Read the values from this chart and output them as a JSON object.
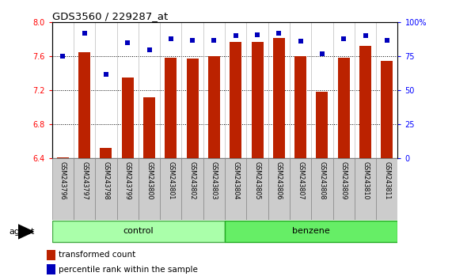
{
  "title": "GDS3560 / 229287_at",
  "samples": [
    "GSM243796",
    "GSM243797",
    "GSM243798",
    "GSM243799",
    "GSM243800",
    "GSM243801",
    "GSM243802",
    "GSM243803",
    "GSM243804",
    "GSM243805",
    "GSM243806",
    "GSM243807",
    "GSM243808",
    "GSM243809",
    "GSM243810",
    "GSM243811"
  ],
  "bar_values": [
    6.41,
    7.65,
    6.52,
    7.35,
    7.12,
    7.58,
    7.57,
    7.6,
    7.77,
    7.77,
    7.82,
    7.6,
    7.18,
    7.58,
    7.72,
    7.55
  ],
  "percentile_values": [
    75,
    92,
    62,
    85,
    80,
    88,
    87,
    87,
    90,
    91,
    92,
    86,
    77,
    88,
    90,
    87
  ],
  "y_min": 6.4,
  "y_max": 8.0,
  "y_ticks": [
    6.4,
    6.8,
    7.2,
    7.6,
    8.0
  ],
  "right_y_ticks": [
    0,
    25,
    50,
    75,
    100
  ],
  "bar_color": "#BB2200",
  "dot_color": "#0000BB",
  "control_color": "#AAFFAA",
  "benzene_color": "#66EE66",
  "agent_label": "agent",
  "background_color": "#FFFFFF",
  "sample_bg_color": "#CCCCCC",
  "n_control": 8,
  "n_benzene": 8
}
